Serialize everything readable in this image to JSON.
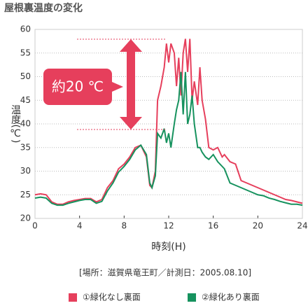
{
  "chart_data": {
    "type": "line",
    "title": "屋根裏温度の変化",
    "xlabel": "時刻(H)",
    "ylabel": "温度(℃)",
    "note": "[場所：滋賀県竜王町／計測日：2005.08.10]",
    "annotation": "約20 ℃",
    "x": [
      0,
      0.5,
      1,
      1.5,
      2,
      2.5,
      3,
      3.5,
      4,
      4.5,
      5,
      5.5,
      6,
      6.5,
      7,
      7.5,
      8,
      8.5,
      9,
      9.5,
      10,
      10.3,
      10.5,
      10.8,
      11,
      11.3,
      11.6,
      11.8,
      12,
      12.2,
      12.5,
      12.7,
      12.9,
      13.1,
      13.3,
      13.5,
      13.7,
      13.9,
      14.1,
      14.3,
      14.6,
      14.8,
      15,
      15.3,
      15.6,
      16,
      16.4,
      16.8,
      17,
      17.5,
      18,
      18.5,
      19,
      19.5,
      20,
      20.5,
      21,
      21.5,
      22,
      22.5,
      23,
      23.5,
      24
    ],
    "series": [
      {
        "name": "①緑化なし裏面",
        "color": "#e63f5c",
        "values": [
          25,
          25.2,
          25,
          23.5,
          23,
          23,
          23.5,
          23.8,
          24,
          24.2,
          24.2,
          23.5,
          24,
          26.5,
          28,
          30.5,
          31.5,
          33,
          35,
          35.5,
          33,
          27,
          26.5,
          30,
          45,
          48,
          52,
          57,
          53,
          57,
          55,
          48,
          54,
          46,
          55,
          58,
          51,
          58,
          45,
          49,
          44,
          52,
          45,
          41,
          35,
          34.5,
          35,
          33,
          33.5,
          32,
          31.5,
          28,
          27.5,
          27,
          26.5,
          26,
          25.5,
          25,
          24.5,
          24,
          23.8,
          23.5,
          23.2
        ]
      },
      {
        "name": "②緑化あり裏面",
        "color": "#16925e",
        "values": [
          24.3,
          24.5,
          24.3,
          23.2,
          22.8,
          22.8,
          23.2,
          23.5,
          23.8,
          24,
          24,
          23.2,
          23.6,
          25.8,
          27.5,
          29.8,
          31,
          32.5,
          34.5,
          35.5,
          33.5,
          27.5,
          26.5,
          29,
          38,
          37,
          39,
          36,
          38,
          35,
          40,
          43,
          45,
          51,
          42,
          51,
          40,
          42,
          46,
          40,
          35,
          35,
          34,
          33,
          32.5,
          33.5,
          32,
          31,
          30.5,
          27.5,
          27,
          26.5,
          26,
          25.5,
          25,
          24.8,
          24.3,
          24,
          23.6,
          23.3,
          23,
          23,
          22.8
        ]
      }
    ],
    "xlim": [
      0,
      24
    ],
    "ylim": [
      20,
      60
    ],
    "xticks": [
      0,
      4,
      8,
      12,
      16,
      20,
      24
    ],
    "yticks": [
      20,
      25,
      30,
      35,
      40,
      45,
      50,
      55,
      60
    ],
    "grid": true
  }
}
